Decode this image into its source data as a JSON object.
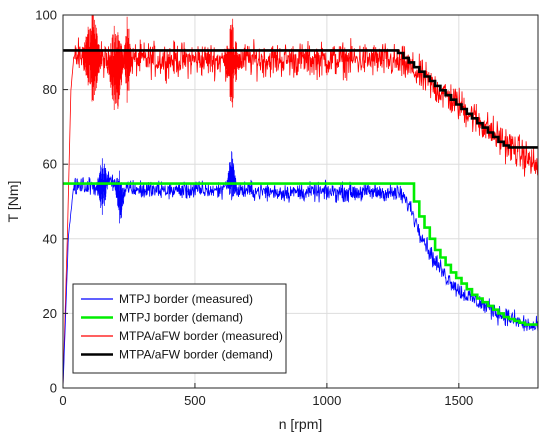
{
  "chart_data": {
    "type": "line",
    "xlabel": "n [rpm]",
    "ylabel": "T [Nm]",
    "xlim": [
      0,
      1800
    ],
    "ylim": [
      0,
      100
    ],
    "xticks": [
      0,
      500,
      1000,
      1500
    ],
    "yticks": [
      0,
      20,
      40,
      60,
      80,
      100
    ],
    "grid": true,
    "legend_position": "bottom-left",
    "series": [
      {
        "name": "MTPJ border (measured)",
        "color": "#0000ff",
        "style": "noisy",
        "x": [
          0,
          20,
          40,
          60,
          100,
          150,
          180,
          200,
          220,
          240,
          300,
          400,
          500,
          600,
          640,
          660,
          700,
          800,
          900,
          1000,
          1100,
          1200,
          1280,
          1320,
          1340,
          1360,
          1380,
          1400,
          1420,
          1450,
          1480,
          1500,
          1550,
          1600,
          1650,
          1700,
          1750,
          1800
        ],
        "y": [
          0,
          40,
          54,
          54,
          54,
          54,
          56,
          54,
          50,
          54,
          53,
          53,
          53,
          53,
          57,
          53,
          53,
          52.5,
          52.5,
          52.5,
          52.5,
          52.5,
          52,
          48,
          44,
          41,
          38,
          35,
          33,
          30,
          28,
          26,
          24,
          22,
          20,
          18.5,
          17,
          16
        ]
      },
      {
        "name": "MTPJ border (demand)",
        "color": "#00ee00",
        "style": "step",
        "x": [
          0,
          1310,
          1330,
          1350,
          1370,
          1390,
          1410,
          1430,
          1450,
          1470,
          1490,
          1510,
          1530,
          1550,
          1570,
          1590,
          1610,
          1630,
          1650,
          1670,
          1690,
          1710,
          1730,
          1750,
          1800
        ],
        "y": [
          54.8,
          54.8,
          50,
          46,
          43,
          40,
          37,
          35,
          33,
          31,
          29.5,
          28,
          26.5,
          25,
          24,
          23,
          22,
          21,
          20,
          19,
          18.5,
          18,
          17.5,
          17,
          17
        ]
      },
      {
        "name": "MTPA/aFW border (measured)",
        "color": "#ff0000",
        "style": "noisy",
        "x": [
          0,
          20,
          30,
          40,
          60,
          100,
          150,
          190,
          210,
          230,
          300,
          400,
          500,
          600,
          640,
          670,
          700,
          800,
          900,
          1000,
          1100,
          1200,
          1250,
          1300,
          1350,
          1400,
          1450,
          1500,
          1550,
          1600,
          1650,
          1700,
          1750,
          1800
        ],
        "y": [
          0,
          50,
          80,
          88,
          89,
          89,
          88,
          86,
          85,
          88,
          88,
          88,
          88,
          88,
          87,
          88,
          88,
          88,
          88,
          88,
          88,
          88,
          87.5,
          86.5,
          84,
          81,
          78.5,
          76,
          73,
          70,
          67,
          64.5,
          62,
          59
        ]
      },
      {
        "name": "MTPA/aFW border (demand)",
        "color": "#000000",
        "style": "step",
        "x": [
          0,
          1080,
          1200,
          1250,
          1270,
          1290,
          1310,
          1330,
          1350,
          1370,
          1390,
          1410,
          1430,
          1450,
          1470,
          1490,
          1510,
          1530,
          1550,
          1570,
          1590,
          1610,
          1630,
          1650,
          1670,
          1690,
          1710,
          1730,
          1800
        ],
        "y": [
          90.5,
          90.5,
          90.5,
          90.5,
          89.8,
          88.5,
          87.3,
          86,
          84.8,
          83.5,
          82.3,
          81,
          79.8,
          78.5,
          77.3,
          76,
          74.8,
          73.5,
          72.3,
          71,
          69.8,
          68.5,
          67.3,
          66,
          65,
          64.5,
          64.5,
          64.5,
          64.5
        ]
      }
    ]
  }
}
